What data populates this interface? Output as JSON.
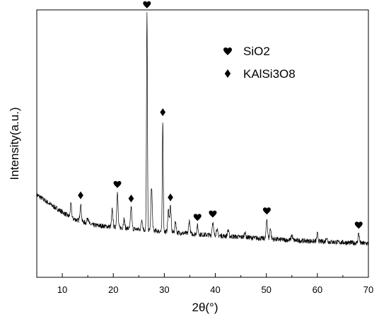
{
  "chart_data": {
    "type": "line",
    "title": "",
    "xlabel": "2θ(°)",
    "ylabel": "Intensity(a.u.)",
    "xlim": [
      5,
      70
    ],
    "xticks": [
      10,
      20,
      30,
      40,
      50,
      60,
      70
    ],
    "y_tick_labels": false,
    "grid": false,
    "legend_position": "top-right",
    "legend": [
      {
        "symbol": "heart",
        "label": "SiO2"
      },
      {
        "symbol": "diamond",
        "label": "KAlSi3O8"
      }
    ],
    "baseline": [
      [
        5,
        0.26
      ],
      [
        8,
        0.21
      ],
      [
        12,
        0.15
      ],
      [
        16,
        0.12
      ],
      [
        25,
        0.1
      ],
      [
        35,
        0.08
      ],
      [
        45,
        0.065
      ],
      [
        55,
        0.05
      ],
      [
        65,
        0.04
      ],
      [
        70,
        0.035
      ]
    ],
    "peaks": [
      {
        "x": 11.7,
        "y": 0.06
      },
      {
        "x": 13.6,
        "y": 0.08,
        "phase": "KAlSi3O8"
      },
      {
        "x": 15.0,
        "y": 0.03
      },
      {
        "x": 19.8,
        "y": 0.08
      },
      {
        "x": 20.8,
        "y": 0.16,
        "phase": "SiO2"
      },
      {
        "x": 22.1,
        "y": 0.04
      },
      {
        "x": 23.5,
        "y": 0.1,
        "phase": "KAlSi3O8"
      },
      {
        "x": 25.6,
        "y": 0.05
      },
      {
        "x": 26.6,
        "y": 1.0,
        "phase": "SiO2"
      },
      {
        "x": 27.5,
        "y": 0.2
      },
      {
        "x": 29.7,
        "y": 0.51,
        "phase": "KAlSi3O8"
      },
      {
        "x": 30.8,
        "y": 0.1
      },
      {
        "x": 31.2,
        "y": 0.12,
        "phase": "KAlSi3O8"
      },
      {
        "x": 32.2,
        "y": 0.05
      },
      {
        "x": 34.9,
        "y": 0.06
      },
      {
        "x": 36.5,
        "y": 0.04,
        "phase": "SiO2"
      },
      {
        "x": 39.5,
        "y": 0.06,
        "phase": "SiO2"
      },
      {
        "x": 40.3,
        "y": 0.03
      },
      {
        "x": 42.5,
        "y": 0.03
      },
      {
        "x": 45.8,
        "y": 0.025
      },
      {
        "x": 50.1,
        "y": 0.09,
        "phase": "SiO2"
      },
      {
        "x": 50.8,
        "y": 0.05
      },
      {
        "x": 55.0,
        "y": 0.025
      },
      {
        "x": 60.0,
        "y": 0.035
      },
      {
        "x": 61.8,
        "y": 0.02
      },
      {
        "x": 68.1,
        "y": 0.045,
        "phase": "SiO2"
      }
    ]
  }
}
